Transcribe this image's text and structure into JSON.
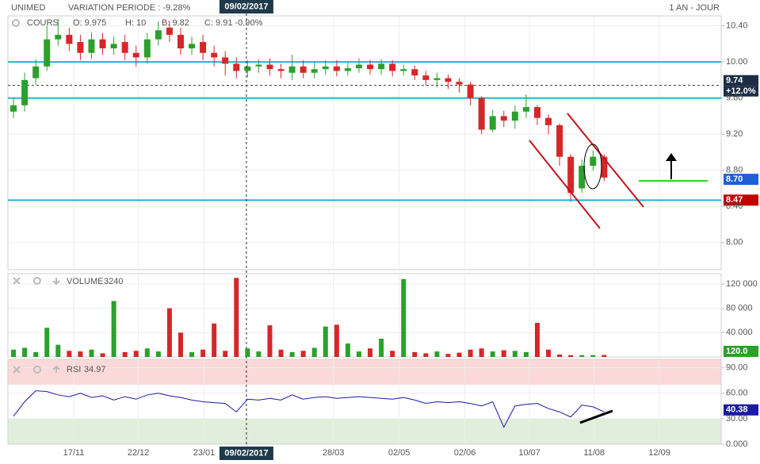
{
  "header": {
    "symbol": "UNIMED",
    "variation": "VARIATION PERIODE : -9.28%",
    "period": "1 AN - JOUR"
  },
  "chart_data": [
    {
      "type": "candlestick",
      "name": "COURS",
      "legend_items": [
        "O: 9.975",
        "H: 10",
        "B: 9.82",
        "C: 9.91 -0.90%"
      ],
      "x": [
        0,
        1,
        2,
        3,
        4,
        5,
        6,
        7,
        8,
        9,
        10,
        11,
        12,
        13,
        14,
        15,
        16,
        17,
        18,
        19,
        20,
        21,
        22,
        23,
        24,
        25,
        26,
        27,
        28,
        29,
        30,
        31,
        32,
        33,
        34,
        35,
        36,
        37,
        38,
        39,
        40,
        41,
        42,
        43,
        44,
        45,
        46,
        47,
        48,
        49,
        50,
        51,
        52,
        53
      ],
      "open": [
        9.45,
        9.52,
        9.82,
        9.95,
        10.25,
        10.3,
        10.22,
        10.1,
        10.25,
        10.15,
        10.22,
        10.1,
        10.05,
        10.25,
        10.38,
        10.3,
        10.15,
        10.22,
        10.1,
        10.05,
        9.98,
        9.9,
        9.95,
        9.97,
        9.92,
        9.88,
        9.95,
        9.88,
        9.92,
        9.95,
        9.9,
        9.93,
        9.97,
        9.92,
        9.98,
        9.9,
        9.92,
        9.85,
        9.8,
        9.82,
        9.78,
        9.75,
        9.6,
        9.25,
        9.4,
        9.35,
        9.45,
        9.5,
        9.38,
        9.3,
        8.95,
        8.6,
        8.85,
        8.95
      ],
      "high": [
        9.6,
        9.88,
        10.03,
        10.4,
        10.48,
        10.38,
        10.3,
        10.33,
        10.32,
        10.28,
        10.3,
        10.18,
        10.32,
        10.45,
        10.45,
        10.38,
        10.28,
        10.3,
        10.18,
        10.12,
        10.05,
        10.02,
        10.03,
        10.04,
        9.98,
        10.08,
        10.02,
        10,
        10.02,
        10.02,
        10,
        10.04,
        10.02,
        10.03,
        10.02,
        9.97,
        9.96,
        9.9,
        9.88,
        9.86,
        9.82,
        9.78,
        9.62,
        9.47,
        9.46,
        9.52,
        9.64,
        9.52,
        9.42,
        9.32,
        8.98,
        8.92,
        9.02,
        8.98
      ],
      "low": [
        9.38,
        9.45,
        9.75,
        9.9,
        10.18,
        10.12,
        10.02,
        10.03,
        10.08,
        10.08,
        10.02,
        9.95,
        9.98,
        10.18,
        10.22,
        10.08,
        10.08,
        10.02,
        9.95,
        9.85,
        9.82,
        9.83,
        9.88,
        9.85,
        9.82,
        9.8,
        9.82,
        9.82,
        9.86,
        9.84,
        9.85,
        9.88,
        9.86,
        9.86,
        9.84,
        9.85,
        9.8,
        9.74,
        9.72,
        9.7,
        9.66,
        9.52,
        9.2,
        9.22,
        9.28,
        9.26,
        9.38,
        9.3,
        9.2,
        8.85,
        8.45,
        8.55,
        8.8,
        8.68
      ],
      "close": [
        9.52,
        9.8,
        9.95,
        10.25,
        10.3,
        10.2,
        10.1,
        10.25,
        10.15,
        10.2,
        10.1,
        10.05,
        10.25,
        10.35,
        10.3,
        10.15,
        10.2,
        10.1,
        10.05,
        9.98,
        9.9,
        9.95,
        9.97,
        9.92,
        9.9,
        9.95,
        9.88,
        9.92,
        9.95,
        9.9,
        9.93,
        9.97,
        9.92,
        9.98,
        9.9,
        9.92,
        9.85,
        9.8,
        9.82,
        9.78,
        9.75,
        9.6,
        9.25,
        9.4,
        9.35,
        9.45,
        9.5,
        9.38,
        9.3,
        8.95,
        8.55,
        8.85,
        8.95,
        8.72
      ],
      "up_color": "#2ca02c",
      "down_color": "#d62728",
      "xlim": [
        -0.5,
        63.5
      ],
      "xticks": [
        {
          "value": 5.4,
          "label": "17/11"
        },
        {
          "value": 11.2,
          "label": "22/12"
        },
        {
          "value": 17.1,
          "label": "23/01"
        },
        {
          "value": 28.7,
          "label": "28/03"
        },
        {
          "value": 34.6,
          "label": "02/05"
        },
        {
          "value": 40.5,
          "label": "02/06"
        },
        {
          "value": 46.3,
          "label": "10/07"
        },
        {
          "value": 52.1,
          "label": "11/08"
        },
        {
          "value": 57.96,
          "label": "12/09"
        }
      ],
      "crosshair": {
        "x": 20.9,
        "label": "09/02/2017"
      },
      "ylim": [
        7.7,
        10.51
      ],
      "yticks": [
        {
          "value": 8,
          "label": "8.00"
        },
        {
          "value": 8.4,
          "label": "8.40"
        },
        {
          "value": 8.8,
          "label": "8.80"
        },
        {
          "value": 9.2,
          "label": "9.20"
        },
        {
          "value": 9.6,
          "label": "9.60"
        },
        {
          "value": 10,
          "label": "10.00"
        },
        {
          "value": 10.4,
          "label": "10.40"
        }
      ],
      "levels": {
        "values": [
          10,
          9.6,
          8.47
        ],
        "color": "#1fb5d6"
      },
      "last": {
        "value": 9.74,
        "change": "+12.0%",
        "color": "#1c2c44"
      },
      "badges": [
        {
          "value": 8.7,
          "label": "8.70",
          "color": "#1f5fd6"
        },
        {
          "value": 8.47,
          "color": "#c00000"
        }
      ]
    },
    {
      "type": "bar",
      "name": "VOLUME",
      "values": [
        12000,
        15000,
        8000,
        48000,
        20000,
        10000,
        9000,
        12000,
        6000,
        92000,
        8000,
        10000,
        14000,
        9000,
        80000,
        40000,
        8000,
        12000,
        55000,
        10000,
        130000,
        14000,
        9000,
        52000,
        12000,
        8000,
        10000,
        15000,
        50000,
        53000,
        22000,
        9000,
        14000,
        30000,
        10000,
        128000,
        8000,
        6000,
        9000,
        5000,
        7000,
        12000,
        14000,
        9000,
        11000,
        10000,
        8000,
        56000,
        12000,
        4000,
        3000,
        3000,
        3000,
        3240
      ],
      "ylim": [
        0,
        137000
      ],
      "yticks": [
        {
          "value": 40000,
          "label": "40 000"
        },
        {
          "value": 80000,
          "label": "80 000"
        },
        {
          "value": 120000,
          "label": "120 000"
        }
      ],
      "badge": "120.0",
      "badge_color": "#2ca02c"
    },
    {
      "type": "line",
      "name": "RSI",
      "current": 34.97,
      "values": [
        33,
        50,
        63,
        62,
        58,
        56,
        60,
        55,
        57,
        52,
        56,
        53,
        58,
        60,
        57,
        55,
        52,
        50,
        49,
        48,
        38,
        53,
        52,
        54,
        52,
        58,
        53,
        55,
        56,
        54,
        55,
        56,
        55,
        54,
        53,
        55,
        52,
        48,
        50,
        49,
        50,
        48,
        45,
        50,
        20,
        45,
        47,
        48,
        42,
        38,
        32,
        46,
        44,
        38
      ],
      "color": "#1a1aa6",
      "ylim": [
        0,
        100
      ],
      "yticks": [
        {
          "value": 0,
          "label": "0.000"
        },
        {
          "value": 30,
          "label": "30.00"
        },
        {
          "value": 60,
          "label": "60.00"
        },
        {
          "value": 90,
          "label": "90.00"
        }
      ],
      "zones": [
        {
          "from": 70,
          "to": 100,
          "color": "#fbd9d9"
        },
        {
          "from": 0,
          "to": 30,
          "color": "#e1eedb"
        }
      ],
      "badge": 40.38
    }
  ]
}
